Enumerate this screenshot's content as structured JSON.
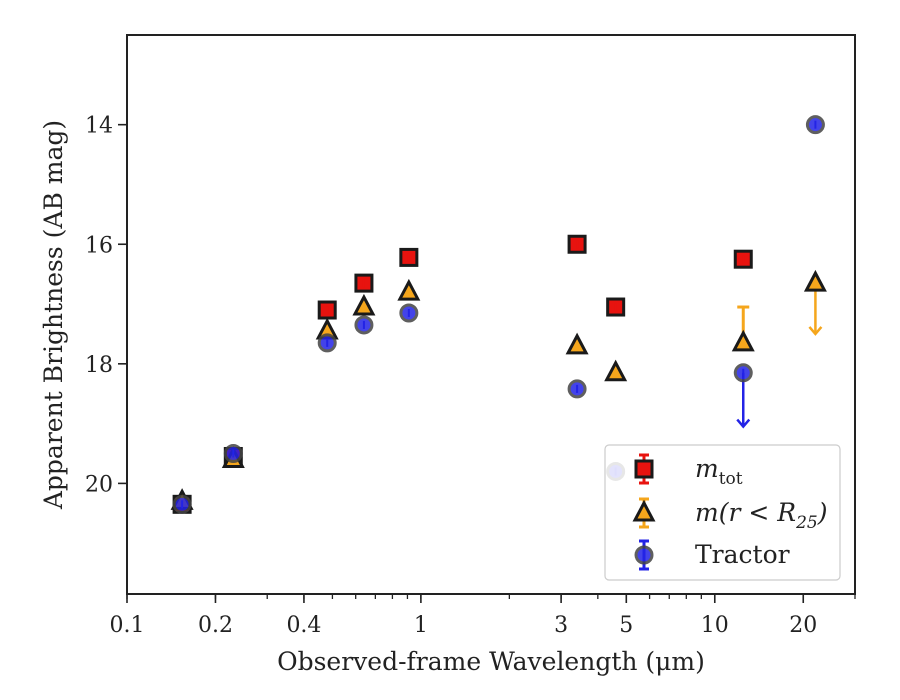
{
  "chart_data": {
    "type": "scatter",
    "title": "",
    "xlabel": "Observed-frame Wavelength (μm)",
    "ylabel": "Apparent Brightness (AB mag)",
    "xscale": "log",
    "xlim": [
      0.1,
      30
    ],
    "ylim": [
      21.85,
      12.5
    ],
    "y_inverted": true,
    "x_tick_labels": [
      "0.1",
      "0.2",
      "0.4",
      "1",
      "3",
      "5",
      "10",
      "20"
    ],
    "y_tick_labels": [
      "14",
      "16",
      "18",
      "20"
    ],
    "grid": false,
    "legend": "lower-right",
    "series": [
      {
        "name": "m_tot",
        "legend_main": "m",
        "legend_sub": "tot",
        "legend_suffix": "",
        "marker": "square",
        "face_color": "#e8130f",
        "edge_color": "#1a1a1a",
        "error_color": "#e8130f",
        "points": [
          {
            "x": 0.154,
            "y": 20.35
          },
          {
            "x": 0.23,
            "y": 19.55
          },
          {
            "x": 0.48,
            "y": 17.1
          },
          {
            "x": 0.64,
            "y": 16.65
          },
          {
            "x": 0.91,
            "y": 16.22
          },
          {
            "x": 3.4,
            "y": 16.0
          },
          {
            "x": 4.6,
            "y": 17.05
          },
          {
            "x": 12.5,
            "y": 16.25
          }
        ]
      },
      {
        "name": "m(r<R25)",
        "legend_main": "m(r < R",
        "legend_sub": "25",
        "legend_suffix": ")",
        "marker": "triangle",
        "face_color": "#f5a61c",
        "edge_color": "#1a1a1a",
        "error_color": "#f5a61c",
        "points": [
          {
            "x": 0.154,
            "y": 20.3
          },
          {
            "x": 0.23,
            "y": 19.6
          },
          {
            "x": 0.48,
            "y": 17.45
          },
          {
            "x": 0.64,
            "y": 17.05
          },
          {
            "x": 0.91,
            "y": 16.8
          },
          {
            "x": 3.4,
            "y": 17.7
          },
          {
            "x": 4.6,
            "y": 18.15
          },
          {
            "x": 12.5,
            "y": 17.65,
            "yerr_low": 17.05
          },
          {
            "x": 22.0,
            "y": 16.65,
            "upper_limit_to": 17.5
          }
        ]
      },
      {
        "name": "Tractor",
        "legend_main": "Tractor",
        "legend_sub": "",
        "legend_suffix": "",
        "marker": "circle",
        "face_color": "#2323e6",
        "edge_color": "#444444",
        "error_color": "#2323e6",
        "points": [
          {
            "x": 0.154,
            "y": 20.35
          },
          {
            "x": 0.23,
            "y": 19.5
          },
          {
            "x": 0.48,
            "y": 17.65
          },
          {
            "x": 0.64,
            "y": 17.35
          },
          {
            "x": 0.91,
            "y": 17.15
          },
          {
            "x": 3.4,
            "y": 18.42
          },
          {
            "x": 4.6,
            "y": 19.8
          },
          {
            "x": 12.5,
            "y": 18.15,
            "upper_limit_to": 19.05
          },
          {
            "x": 22.0,
            "y": 14.0
          }
        ]
      }
    ]
  }
}
